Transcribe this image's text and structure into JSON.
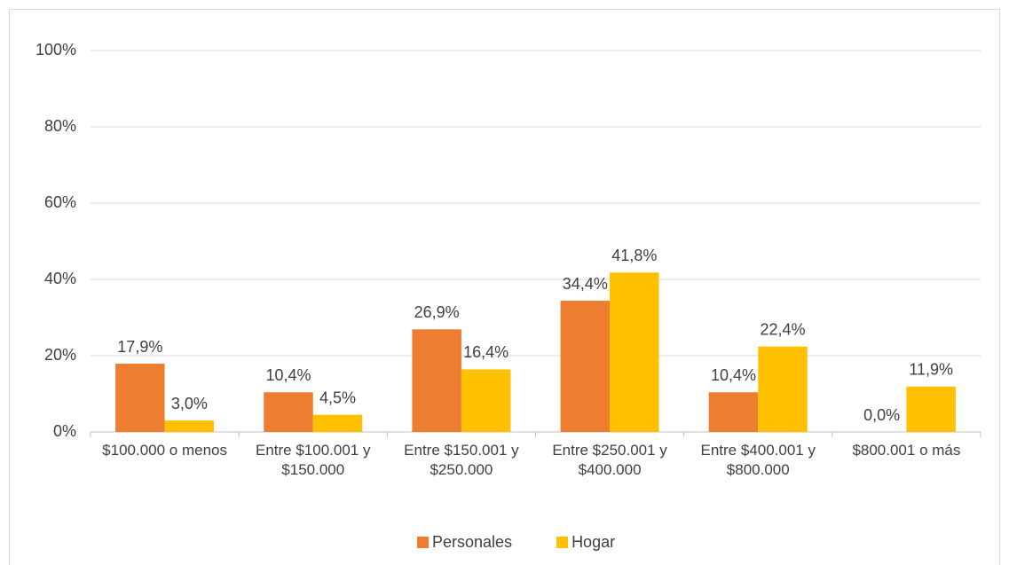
{
  "chart_data": {
    "type": "bar",
    "categories": [
      "$100.000 o menos",
      "Entre $100.001 y $150.000",
      "Entre $150.001 y $250.000",
      "Entre $250.001 y $400.000",
      "Entre $400.001 y $800.000",
      "$800.001 o más"
    ],
    "series": [
      {
        "name": "Personales",
        "color": "#ed7d31",
        "values": [
          17.9,
          10.4,
          26.9,
          34.4,
          10.4,
          0.0
        ],
        "value_labels": [
          "17,9%",
          "10,4%",
          "26,9%",
          "34,4%",
          "10,4%",
          "0,0%"
        ]
      },
      {
        "name": "Hogar",
        "color": "#ffc000",
        "values": [
          3.0,
          4.5,
          16.4,
          41.8,
          22.4,
          11.9
        ],
        "value_labels": [
          "3,0%",
          "4,5%",
          "16,4%",
          "41,8%",
          "22,4%",
          "11,9%"
        ]
      }
    ],
    "ylim": [
      0,
      100
    ],
    "yticks": [
      {
        "value": 0,
        "label": "0%"
      },
      {
        "value": 20,
        "label": "20%"
      },
      {
        "value": 40,
        "label": "40%"
      },
      {
        "value": 60,
        "label": "60%"
      },
      {
        "value": 80,
        "label": "80%"
      },
      {
        "value": 100,
        "label": "100%"
      }
    ],
    "grid": true,
    "legend": "bottom"
  }
}
